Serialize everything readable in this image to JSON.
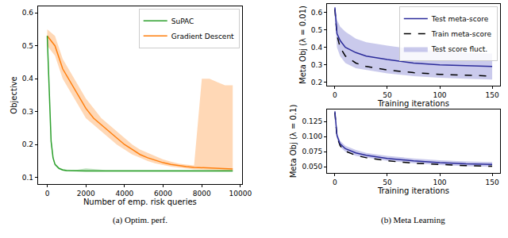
{
  "chart_data": [
    {
      "type": "line",
      "title": "(a) Optim. perf.",
      "x_label": "Number of emp. risk queries",
      "y_label": "Objective",
      "xlim": [
        -480,
        10080
      ],
      "xticks": [
        0,
        2000,
        4000,
        6000,
        8000,
        10000
      ],
      "ylim": [
        0.08,
        0.62
      ],
      "yticks": [
        0.1,
        0.2,
        0.3,
        0.4,
        0.5,
        0.6
      ],
      "grid": false,
      "legend": "upper right",
      "series": [
        {
          "name": "Gradient Descent",
          "color": "#ff7f0e",
          "x": [
            0,
            400,
            800,
            1200,
            1600,
            2000,
            2400,
            2800,
            3200,
            3600,
            4000,
            4400,
            4800,
            5200,
            5600,
            6000,
            6400,
            6800,
            7200,
            7600,
            8000,
            8400,
            8800,
            9200,
            9600
          ],
          "values": [
            0.53,
            0.5,
            0.43,
            0.39,
            0.35,
            0.31,
            0.28,
            0.26,
            0.24,
            0.22,
            0.2,
            0.185,
            0.17,
            0.16,
            0.152,
            0.145,
            0.14,
            0.136,
            0.133,
            0.131,
            0.13,
            0.129,
            0.128,
            0.127,
            0.126
          ],
          "lower": [
            0.5,
            0.47,
            0.4,
            0.36,
            0.32,
            0.28,
            0.26,
            0.24,
            0.22,
            0.2,
            0.185,
            0.17,
            0.16,
            0.15,
            0.143,
            0.138,
            0.133,
            0.13,
            0.127,
            0.125,
            0.124,
            0.123,
            0.122,
            0.121,
            0.12
          ],
          "upper": [
            0.55,
            0.53,
            0.46,
            0.42,
            0.38,
            0.34,
            0.31,
            0.28,
            0.26,
            0.24,
            0.22,
            0.2,
            0.185,
            0.175,
            0.165,
            0.155,
            0.148,
            0.142,
            0.139,
            0.137,
            0.4,
            0.4,
            0.39,
            0.38,
            0.38
          ]
        },
        {
          "name": "SuPAC",
          "color": "#2ca02c",
          "x": [
            0,
            50,
            100,
            150,
            200,
            300,
            400,
            600,
            800,
            1000,
            1500,
            2000,
            3000,
            4000,
            5000,
            6000,
            7000,
            8000,
            9000,
            9600
          ],
          "values": [
            0.53,
            0.45,
            0.35,
            0.27,
            0.21,
            0.16,
            0.14,
            0.128,
            0.123,
            0.121,
            0.12,
            0.12,
            0.12,
            0.12,
            0.12,
            0.12,
            0.12,
            0.12,
            0.12,
            0.12
          ],
          "lower": [
            0.52,
            0.43,
            0.33,
            0.25,
            0.2,
            0.155,
            0.136,
            0.125,
            0.121,
            0.119,
            0.118,
            0.118,
            0.118,
            0.118,
            0.118,
            0.118,
            0.118,
            0.118,
            0.118,
            0.118
          ],
          "upper": [
            0.54,
            0.47,
            0.37,
            0.29,
            0.22,
            0.165,
            0.144,
            0.131,
            0.126,
            0.124,
            0.123,
            0.128,
            0.123,
            0.123,
            0.123,
            0.123,
            0.123,
            0.123,
            0.123,
            0.123
          ]
        }
      ]
    },
    {
      "type": "line",
      "x_label": "Training iterations",
      "y_label": "Meta Obj (λ = 0.01)",
      "xlim": [
        -7.5,
        157.5
      ],
      "xticks": [
        0,
        50,
        100,
        150
      ],
      "ylim": [
        0.18,
        0.65
      ],
      "yticks": [
        0.2,
        0.3,
        0.4,
        0.5,
        0.6
      ],
      "grid": false,
      "legend": "upper right",
      "series": [
        {
          "name": "Train meta-score",
          "color": "#000000",
          "line_style": "dashed",
          "x": [
            0,
            2,
            5,
            10,
            20,
            30,
            50,
            75,
            100,
            125,
            150
          ],
          "values": [
            0.62,
            0.47,
            0.4,
            0.35,
            0.31,
            0.29,
            0.27,
            0.255,
            0.245,
            0.24,
            0.235
          ]
        },
        {
          "name": "Test meta-score",
          "color": "#2b2b9a",
          "line_style": "solid",
          "x": [
            0,
            2,
            5,
            10,
            20,
            30,
            50,
            75,
            100,
            125,
            150
          ],
          "values": [
            0.63,
            0.48,
            0.44,
            0.4,
            0.37,
            0.35,
            0.33,
            0.31,
            0.3,
            0.295,
            0.29
          ]
        },
        {
          "name": "Test score fluct.",
          "type": "band",
          "color": "#9f9fdc",
          "x": [
            0,
            2,
            5,
            10,
            20,
            30,
            50,
            75,
            100,
            125,
            150
          ],
          "lower": [
            0.58,
            0.4,
            0.35,
            0.31,
            0.28,
            0.27,
            0.25,
            0.235,
            0.225,
            0.22,
            0.215
          ],
          "upper": [
            0.64,
            0.56,
            0.52,
            0.49,
            0.45,
            0.43,
            0.41,
            0.39,
            0.38,
            0.37,
            0.365
          ]
        }
      ]
    },
    {
      "type": "line",
      "title": "(b) Meta Learning",
      "x_label": "Training iterations",
      "y_label": "Meta Obj (λ = 0.1)",
      "xlim": [
        -7.5,
        157.5
      ],
      "xticks": [
        0,
        50,
        100,
        150
      ],
      "ylim": [
        0.04,
        0.145
      ],
      "yticks": [
        {
          "value": 0.05,
          "label": "0.050"
        },
        {
          "value": 0.075,
          "label": "0.075"
        },
        {
          "value": 0.1,
          "label": "0.100"
        },
        {
          "value": 0.125,
          "label": "0.125"
        }
      ],
      "grid": false,
      "series": [
        {
          "color": "#000000",
          "line_style": "dashed",
          "x": [
            0,
            2,
            5,
            10,
            20,
            30,
            50,
            75,
            100,
            125,
            150
          ],
          "values": [
            0.14,
            0.1,
            0.085,
            0.076,
            0.069,
            0.065,
            0.06,
            0.056,
            0.054,
            0.052,
            0.051
          ]
        },
        {
          "color": "#2b2b9a",
          "line_style": "solid",
          "x": [
            0,
            2,
            5,
            10,
            20,
            30,
            50,
            75,
            100,
            125,
            150
          ],
          "values": [
            0.142,
            0.102,
            0.088,
            0.08,
            0.073,
            0.069,
            0.064,
            0.06,
            0.057,
            0.055,
            0.054
          ]
        },
        {
          "type": "band",
          "color": "#9f9fdc",
          "x": [
            0,
            2,
            5,
            10,
            20,
            30,
            50,
            75,
            100,
            125,
            150
          ],
          "lower": [
            0.137,
            0.097,
            0.083,
            0.075,
            0.068,
            0.065,
            0.06,
            0.056,
            0.053,
            0.051,
            0.05
          ],
          "upper": [
            0.145,
            0.107,
            0.093,
            0.085,
            0.078,
            0.073,
            0.068,
            0.064,
            0.061,
            0.059,
            0.058
          ]
        }
      ]
    }
  ]
}
